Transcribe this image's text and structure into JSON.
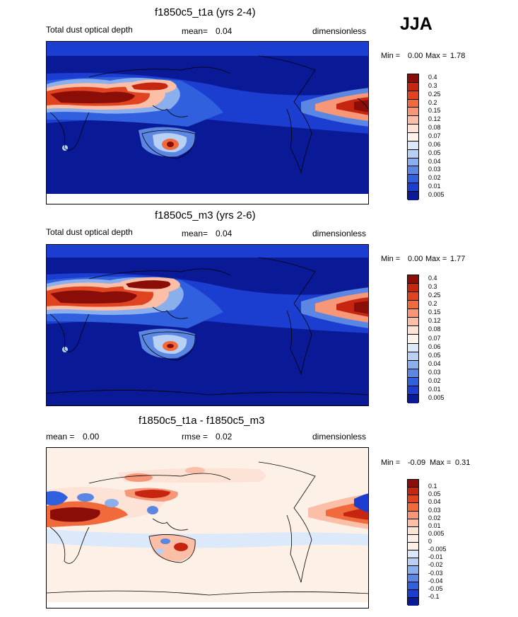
{
  "season_label": "JJA",
  "chart_data": [
    {
      "type": "heatmap",
      "title": "f1850c5_t1a (yrs 2-4)",
      "variable": "Total dust optical depth",
      "stat_label": "mean=",
      "stat_value": "0.04",
      "units": "dimensionless",
      "min_label": "Min =",
      "min_value": "0.00",
      "max_label": "Max =",
      "max_value": "1.78",
      "colorbar_levels": [
        "0.4",
        "0.3",
        "0.25",
        "0.2",
        "0.15",
        "0.12",
        "0.08",
        "0.07",
        "0.06",
        "0.05",
        "0.04",
        "0.03",
        "0.02",
        "0.01",
        "0.005"
      ],
      "colorbar_colors": [
        "#8b0d08",
        "#c6260f",
        "#e0431f",
        "#f06a3c",
        "#f79777",
        "#fbbfa8",
        "#fce3d6",
        "#fdf3ec",
        "#dce9fa",
        "#b7d0f4",
        "#8aafec",
        "#5b86e2",
        "#3060dd",
        "#1c3ed0",
        "#0a1a96"
      ]
    },
    {
      "type": "heatmap",
      "title": "f1850c5_m3 (yrs 2-6)",
      "variable": "Total dust optical depth",
      "stat_label": "mean=",
      "stat_value": "0.04",
      "units": "dimensionless",
      "min_label": "Min =",
      "min_value": "0.00",
      "max_label": "Max =",
      "max_value": "1.77",
      "colorbar_levels": [
        "0.4",
        "0.3",
        "0.25",
        "0.2",
        "0.15",
        "0.12",
        "0.08",
        "0.07",
        "0.06",
        "0.05",
        "0.04",
        "0.03",
        "0.02",
        "0.01",
        "0.005"
      ],
      "colorbar_colors": [
        "#8b0d08",
        "#c6260f",
        "#e0431f",
        "#f06a3c",
        "#f79777",
        "#fbbfa8",
        "#fce3d6",
        "#fdf3ec",
        "#dce9fa",
        "#b7d0f4",
        "#8aafec",
        "#5b86e2",
        "#3060dd",
        "#1c3ed0",
        "#0a1a96"
      ]
    },
    {
      "type": "heatmap",
      "title": "f1850c5_t1a - f1850c5_m3",
      "stat_label": "mean =",
      "stat_value": "0.00",
      "rmse_label": "rmse =",
      "rmse_value": "0.02",
      "units": "dimensionless",
      "min_label": "Min =",
      "min_value": "-0.09",
      "max_label": "Max =",
      "max_value": "0.31",
      "colorbar_levels": [
        "0.1",
        "0.05",
        "0.04",
        "0.03",
        "0.02",
        "0.01",
        "0.005",
        "0",
        "-0.005",
        "-0.01",
        "-0.02",
        "-0.03",
        "-0.04",
        "-0.05",
        "-0.1"
      ],
      "colorbar_colors": [
        "#8b0d08",
        "#c6260f",
        "#e0431f",
        "#f06a3c",
        "#f79777",
        "#fbbfa8",
        "#fce3d6",
        "#fdf0e6",
        "#fdf0e6",
        "#dce9fa",
        "#b7d0f4",
        "#8aafec",
        "#5b86e2",
        "#3060dd",
        "#1c3ed0",
        "#0a1a96"
      ]
    }
  ]
}
